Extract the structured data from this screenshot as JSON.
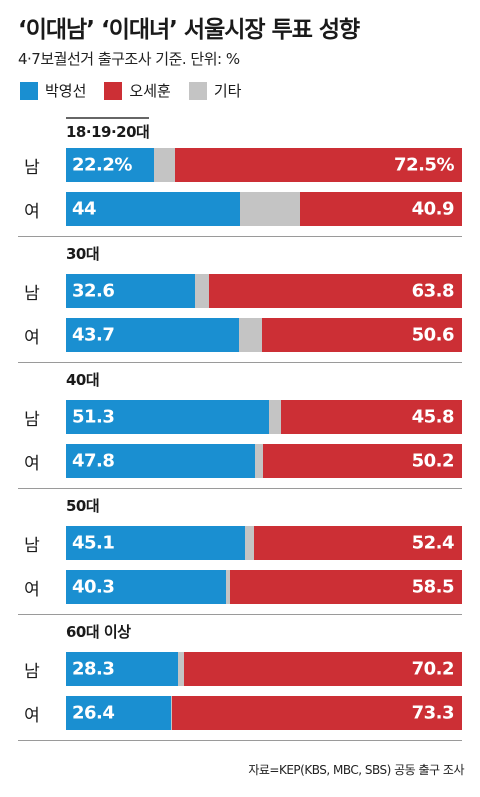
{
  "title": "‘이대남’ ‘이대녀’ 서울시장 투표 성향",
  "subtitle": "4·7보궐선거 출구조사 기준. 단위: %",
  "source": "자료=KEP(KBS, MBC, SBS) 공동 출구 조사",
  "colors": {
    "park": "#1a8fd1",
    "oh": "#cc2f35",
    "other": "#c4c4c4"
  },
  "legend": [
    {
      "label": "박영선",
      "key": "park"
    },
    {
      "label": "오세훈",
      "key": "oh"
    },
    {
      "label": "기타",
      "key": "other"
    }
  ],
  "chart_data": {
    "type": "bar",
    "orientation": "horizontal-stacked-100",
    "title": "‘이대남’ ‘이대녀’ 서울시장 투표 성향",
    "subtitle": "4·7보궐선거 출구조사 기준. 단위: %",
    "series_names": [
      "박영선",
      "오세훈",
      "기타"
    ],
    "groups": [
      {
        "label": "18·19·20대",
        "rows": [
          {
            "label": "남",
            "park": 22.2,
            "oh": 72.5,
            "park_text": "22.2%",
            "oh_text": "72.5%"
          },
          {
            "label": "여",
            "park": 44,
            "oh": 40.9,
            "park_text": "44",
            "oh_text": "40.9"
          }
        ]
      },
      {
        "label": "30대",
        "rows": [
          {
            "label": "남",
            "park": 32.6,
            "oh": 63.8,
            "park_text": "32.6",
            "oh_text": "63.8"
          },
          {
            "label": "여",
            "park": 43.7,
            "oh": 50.6,
            "park_text": "43.7",
            "oh_text": "50.6"
          }
        ]
      },
      {
        "label": "40대",
        "rows": [
          {
            "label": "남",
            "park": 51.3,
            "oh": 45.8,
            "park_text": "51.3",
            "oh_text": "45.8"
          },
          {
            "label": "여",
            "park": 47.8,
            "oh": 50.2,
            "park_text": "47.8",
            "oh_text": "50.2"
          }
        ]
      },
      {
        "label": "50대",
        "rows": [
          {
            "label": "남",
            "park": 45.1,
            "oh": 52.4,
            "park_text": "45.1",
            "oh_text": "52.4"
          },
          {
            "label": "여",
            "park": 40.3,
            "oh": 58.5,
            "park_text": "40.3",
            "oh_text": "58.5"
          }
        ]
      },
      {
        "label": "60대 이상",
        "rows": [
          {
            "label": "남",
            "park": 28.3,
            "oh": 70.2,
            "park_text": "28.3",
            "oh_text": "70.2"
          },
          {
            "label": "여",
            "park": 26.4,
            "oh": 73.3,
            "park_text": "26.4",
            "oh_text": "73.3"
          }
        ]
      }
    ]
  }
}
